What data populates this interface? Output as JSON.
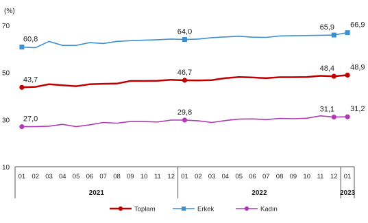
{
  "chart_data": {
    "type": "line",
    "ylabel": "(%)",
    "ylim": [
      10,
      70
    ],
    "yticks": [
      "10",
      "30",
      "50",
      "70"
    ],
    "grid": false,
    "legend_position": "bottom",
    "x": [
      "01",
      "02",
      "03",
      "04",
      "05",
      "06",
      "07",
      "08",
      "09",
      "10",
      "11",
      "12",
      "01",
      "02",
      "03",
      "04",
      "05",
      "06",
      "07",
      "08",
      "09",
      "10",
      "11",
      "12",
      "01"
    ],
    "years": [
      {
        "label": "2021",
        "start": 0,
        "end": 11
      },
      {
        "label": "2022",
        "start": 12,
        "end": 23
      },
      {
        "label": "2023",
        "start": 24,
        "end": 24
      }
    ],
    "series": [
      {
        "name": "Toplam",
        "color": "#c00000",
        "values": [
          43.7,
          43.9,
          45.0,
          44.6,
          44.2,
          45.0,
          45.2,
          45.3,
          46.4,
          46.4,
          46.5,
          46.9,
          46.7,
          46.6,
          46.8,
          47.6,
          48.1,
          47.9,
          47.6,
          48.0,
          48.0,
          48.1,
          48.6,
          48.4,
          48.9
        ],
        "labels": [
          {
            "i": 0,
            "text": "43,7"
          },
          {
            "i": 12,
            "text": "46,7"
          },
          {
            "i": 23,
            "text": "48,4"
          },
          {
            "i": 24,
            "text": "48,9"
          }
        ]
      },
      {
        "name": "Erkek",
        "color": "#3d8fd1",
        "values": [
          60.8,
          60.5,
          63.2,
          61.5,
          61.5,
          62.7,
          62.3,
          63.2,
          63.5,
          63.7,
          63.9,
          64.2,
          64.0,
          64.2,
          64.8,
          65.1,
          65.4,
          65.0,
          64.9,
          65.5,
          65.6,
          65.7,
          65.8,
          65.9,
          66.9
        ],
        "labels": [
          {
            "i": 0,
            "text": "60,8"
          },
          {
            "i": 12,
            "text": "64,0"
          },
          {
            "i": 23,
            "text": "65,9"
          },
          {
            "i": 24,
            "text": "66,9"
          }
        ]
      },
      {
        "name": "Kadın",
        "color": "#b03ab5",
        "values": [
          27.0,
          27.0,
          27.2,
          28.0,
          27.0,
          27.8,
          28.8,
          28.5,
          29.2,
          29.2,
          29.0,
          29.8,
          29.8,
          29.5,
          28.8,
          29.6,
          30.2,
          30.3,
          30.0,
          30.5,
          30.4,
          30.6,
          31.6,
          31.1,
          31.2
        ],
        "labels": [
          {
            "i": 0,
            "text": "27,0"
          },
          {
            "i": 12,
            "text": "29,8"
          },
          {
            "i": 23,
            "text": "31,1"
          },
          {
            "i": 24,
            "text": "31,2"
          }
        ]
      }
    ]
  }
}
